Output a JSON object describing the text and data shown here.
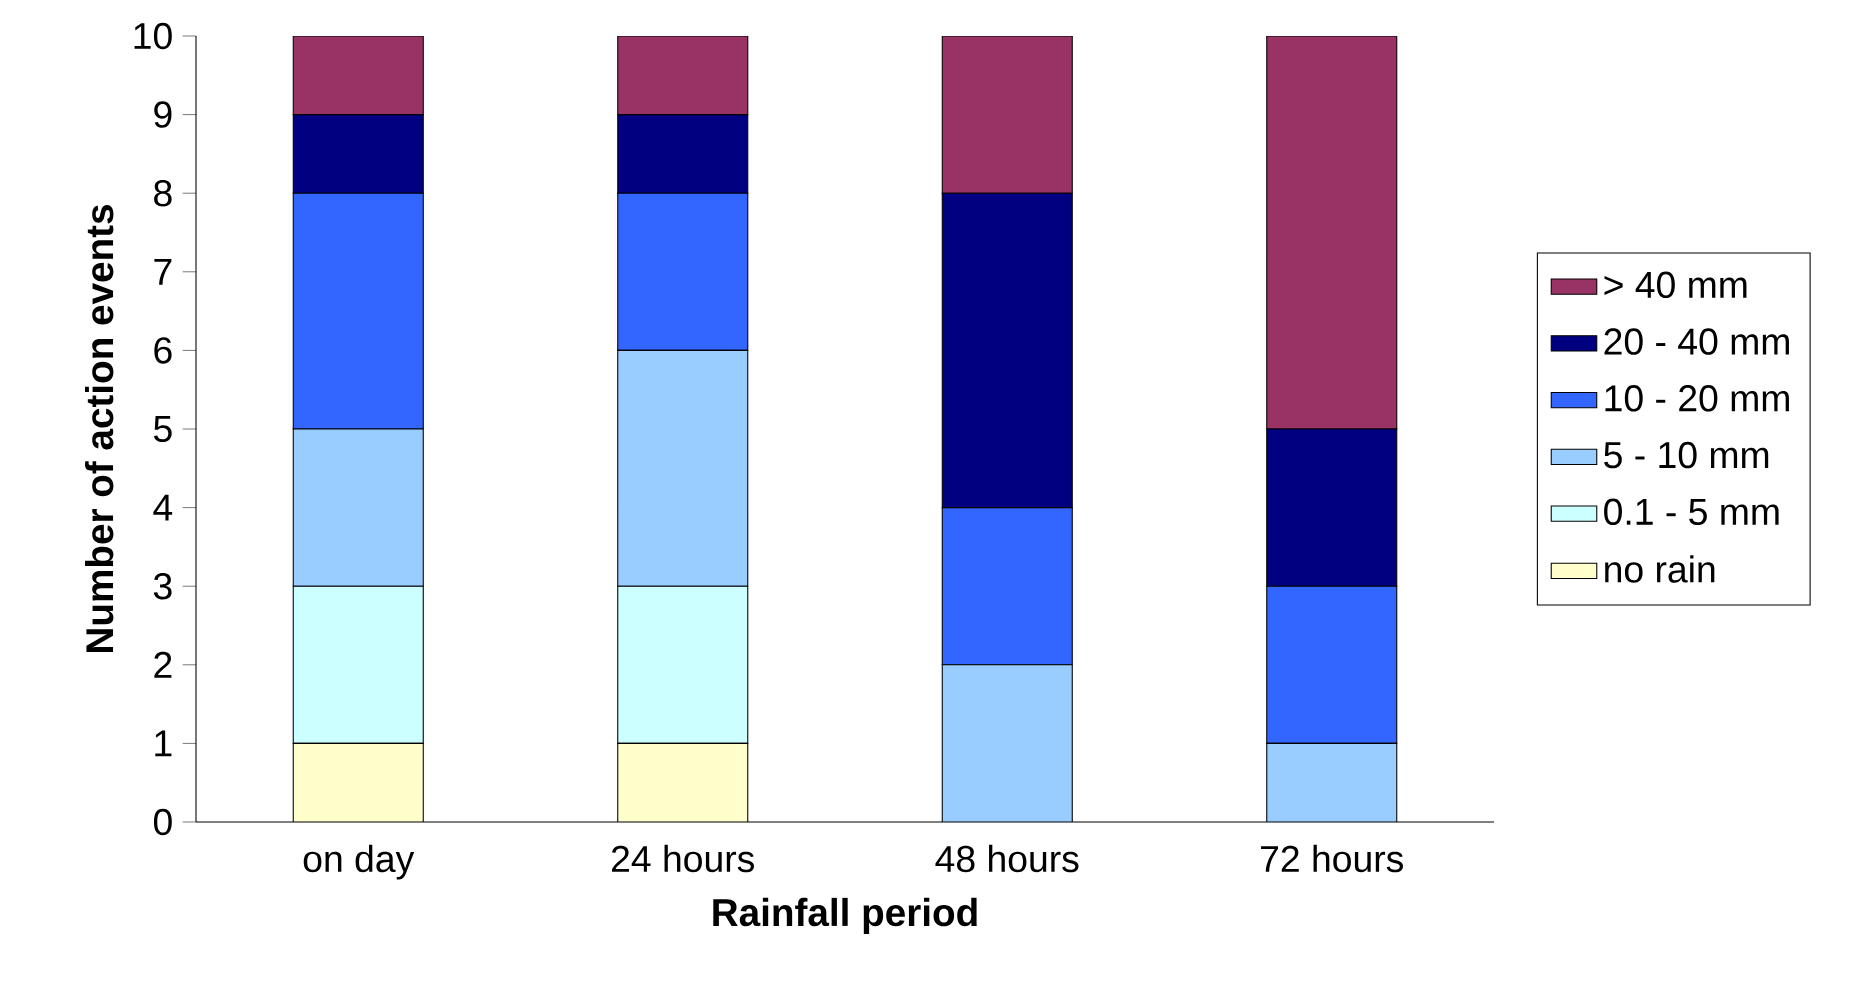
{
  "chart_data": {
    "type": "bar",
    "stacked": true,
    "xlabel": "Rainfall period",
    "ylabel": "Number of action events",
    "categories": [
      "on day",
      "24 hours",
      "48 hours",
      "72 hours"
    ],
    "series": [
      {
        "name": "no rain",
        "color": "#ffffcc",
        "values": [
          1,
          1,
          0,
          0
        ]
      },
      {
        "name": "0.1 - 5 mm",
        "color": "#ccffff",
        "values": [
          2,
          2,
          0,
          0
        ]
      },
      {
        "name": "5 - 10 mm",
        "color": "#99ccff",
        "values": [
          2,
          3,
          2,
          1
        ]
      },
      {
        "name": "10 - 20 mm",
        "color": "#3366ff",
        "values": [
          3,
          2,
          2,
          2
        ]
      },
      {
        "name": "20 - 40 mm",
        "color": "#000080",
        "values": [
          1,
          1,
          4,
          2
        ]
      },
      {
        "name": "> 40 mm",
        "color": "#993366",
        "values": [
          1,
          1,
          2,
          5
        ]
      }
    ],
    "ylim": [
      0,
      10
    ],
    "yticks": [
      0,
      1,
      2,
      3,
      4,
      5,
      6,
      7,
      8,
      9,
      10
    ],
    "legend": "right",
    "grid": false
  }
}
